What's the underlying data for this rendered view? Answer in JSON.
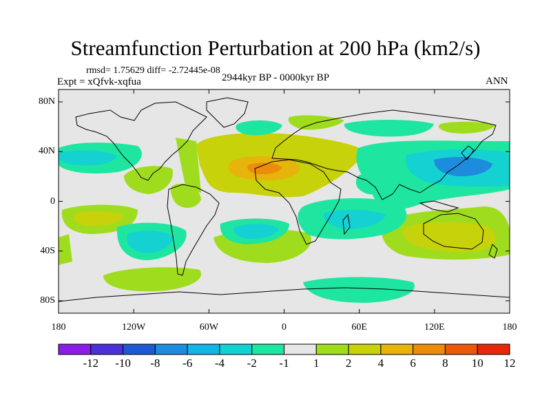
{
  "title": "Streamfunction Perturbation at 200 hPa (km2/s)",
  "stats": "rmsd= 1.75629 diff= -2.72445e-08",
  "experiment": "Expt = xQfvk-xqfua",
  "period": "2944kyr BP - 0000kyr BP",
  "season": "ANN",
  "map": {
    "projection": "cylindrical equidistant",
    "lon_range": [
      -180,
      180
    ],
    "lat_range": [
      -90,
      90
    ],
    "lat_ticks": [
      "80N",
      "40N",
      "0",
      "40S",
      "80S"
    ],
    "lon_ticks": [
      "180",
      "120W",
      "60W",
      "0",
      "60E",
      "120E",
      "180"
    ]
  },
  "colorbar": {
    "labels": [
      "-12",
      "-10",
      "-8",
      "-6",
      "-4",
      "-2",
      "-1",
      "1",
      "2",
      "4",
      "6",
      "8",
      "10",
      "12"
    ],
    "colors": [
      "#8a1ee6",
      "#4a32d8",
      "#1e5ad2",
      "#1e8cdc",
      "#14b4e6",
      "#14d2d2",
      "#1ee6a0",
      "#e6e6e6",
      "#a0dc1e",
      "#c8d20a",
      "#e6b40a",
      "#eb8c0a",
      "#eb5a0a",
      "#e6280a"
    ]
  }
}
